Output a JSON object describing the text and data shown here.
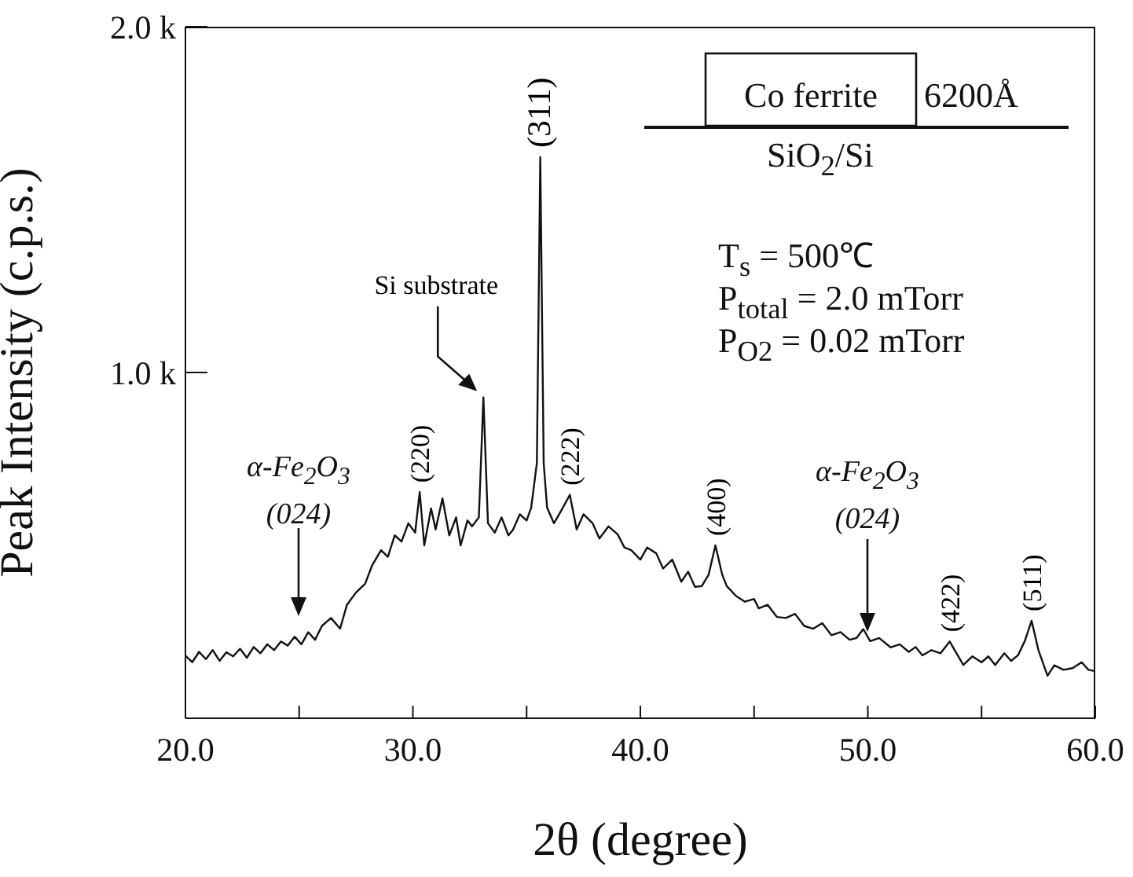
{
  "chart_data": {
    "type": "line",
    "xlabel": "2θ (degree)",
    "ylabel": "Peak Intensity (c.p.s.)",
    "xlim": [
      20,
      60
    ],
    "xticks": [
      {
        "value": 20,
        "label": "20.0"
      },
      {
        "value": 25,
        "label": null
      },
      {
        "value": 30,
        "label": "30.0"
      },
      {
        "value": 35,
        "label": null
      },
      {
        "value": 40,
        "label": "40.0"
      },
      {
        "value": 45,
        "label": null
      },
      {
        "value": 50,
        "label": "50.0"
      },
      {
        "value": 55,
        "label": null
      },
      {
        "value": 60,
        "label": "60.0"
      }
    ],
    "ylim": [
      0,
      2000
    ],
    "yticks": [
      {
        "value": 1000,
        "label": "1.0 k"
      },
      {
        "value": 2000,
        "label": "2.0 k"
      }
    ],
    "grid": false,
    "legend": false,
    "marker": "none",
    "line_style": "solid",
    "series": [
      {
        "color": "#111111",
        "x": [
          20.0,
          20.3,
          20.6,
          20.9,
          21.2,
          21.5,
          21.8,
          22.1,
          22.4,
          22.7,
          23.0,
          23.3,
          23.6,
          23.9,
          24.2,
          24.5,
          24.8,
          25.1,
          25.4,
          25.7,
          26.0,
          26.4,
          26.8,
          27.1,
          27.5,
          27.9,
          28.2,
          28.6,
          28.9,
          29.2,
          29.5,
          29.8,
          30.1,
          30.3,
          30.5,
          30.8,
          31.0,
          31.3,
          31.6,
          31.9,
          32.1,
          32.4,
          32.6,
          32.9,
          33.1,
          33.3,
          33.6,
          33.9,
          34.2,
          34.4,
          34.7,
          35.0,
          35.2,
          35.45,
          35.6,
          35.75,
          35.9,
          36.2,
          36.5,
          36.9,
          37.2,
          37.5,
          37.9,
          38.2,
          38.6,
          39.0,
          39.3,
          39.6,
          40.0,
          40.3,
          40.7,
          41.0,
          41.4,
          41.8,
          42.1,
          42.4,
          42.7,
          43.0,
          43.3,
          43.6,
          43.8,
          44.2,
          44.6,
          45.0,
          45.2,
          45.6,
          46.0,
          46.4,
          46.8,
          47.2,
          47.6,
          48.0,
          48.4,
          48.8,
          49.2,
          49.5,
          49.8,
          50.1,
          50.5,
          51.0,
          51.4,
          51.8,
          52.1,
          52.4,
          52.8,
          53.2,
          53.6,
          53.9,
          54.2,
          54.6,
          55.0,
          55.3,
          55.6,
          56.0,
          56.3,
          56.6,
          56.9,
          57.2,
          57.5,
          57.9,
          58.2,
          58.6,
          59.0,
          59.4,
          59.7,
          60.0
        ],
        "values": [
          181,
          162,
          192,
          171,
          197,
          166,
          191,
          179,
          201,
          175,
          206,
          188,
          214,
          197,
          222,
          210,
          236,
          214,
          249,
          227,
          267,
          290,
          259,
          328,
          364,
          389,
          441,
          486,
          467,
          529,
          511,
          564,
          537,
          654,
          500,
          607,
          546,
          636,
          529,
          581,
          500,
          572,
          555,
          581,
          928,
          564,
          537,
          581,
          529,
          545,
          590,
          572,
          609,
          738,
          1623,
          738,
          609,
          564,
          598,
          646,
          546,
          590,
          564,
          520,
          555,
          532,
          494,
          486,
          459,
          494,
          477,
          433,
          459,
          395,
          424,
          380,
          382,
          415,
          500,
          415,
          382,
          354,
          337,
          345,
          318,
          328,
          293,
          290,
          302,
          267,
          259,
          275,
          240,
          249,
          227,
          232,
          258,
          223,
          232,
          205,
          214,
          192,
          206,
          182,
          197,
          188,
          222,
          188,
          154,
          179,
          162,
          179,
          154,
          188,
          166,
          182,
          223,
          282,
          197,
          123,
          153,
          140,
          145,
          162,
          140,
          136
        ]
      }
    ],
    "annotations": [
      {
        "text": "Si substrate",
        "x": 33.1,
        "y": 928
      },
      {
        "text": "(220)",
        "x": 30.3,
        "y": 654
      },
      {
        "text": "(311)",
        "x": 35.6,
        "y": 1623
      },
      {
        "text": "(222)",
        "x": 36.9,
        "y": 646
      },
      {
        "text": "(400)",
        "x": 43.3,
        "y": 500
      },
      {
        "text": "(422)",
        "x": 53.6,
        "y": 222
      },
      {
        "text": "(511)",
        "x": 57.2,
        "y": 282
      },
      "α-Fe$_{2}$O$_{3}$ (024)",
      "α-Fe$_{2}$O$_{3}$ (024)",
      "Co ferrite",
      "6200Å",
      "SiO$_{2}$/Si",
      "T$_{s}$ = 500℃",
      "P$_{total}$ = 2.0 mTorr",
      "P$_{O2}$ = 0.02 mTorr"
    ]
  }
}
